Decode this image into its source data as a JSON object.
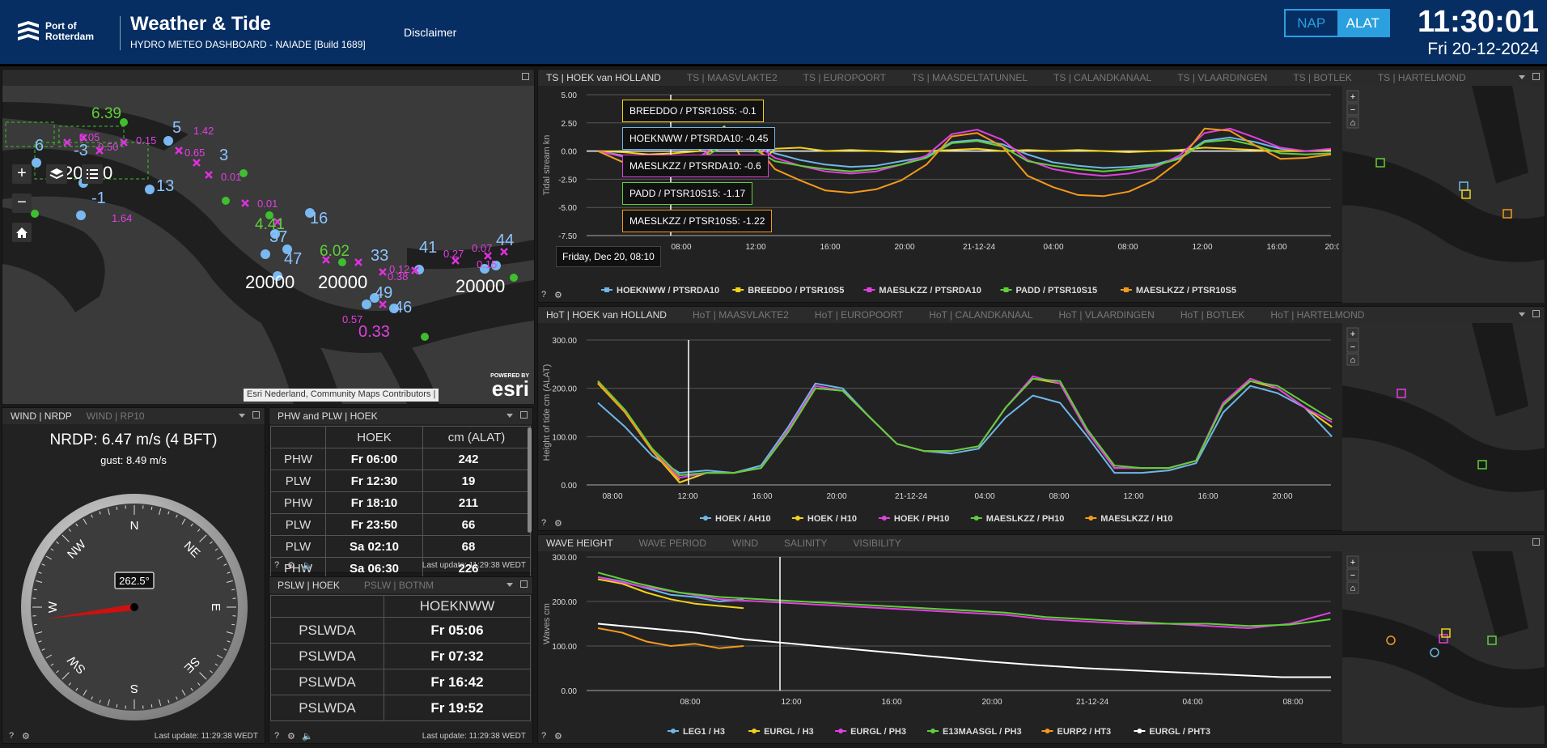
{
  "header": {
    "logo_line1": "Port of",
    "logo_line2": "Rotterdam",
    "title": "Weather & Tide",
    "subtitle": "HYDRO METEO DASHBOARD - NAIADE [Build 1689]",
    "disclaimer": "Disclaimer",
    "unit_nap": "NAP",
    "unit_alat": "ALAT",
    "time": "11:30:01",
    "date": "Fri 20-12-2024"
  },
  "map": {
    "attribution": "Esri Nederland, Community Maps Contributors |",
    "powered": "POWERED BY",
    "esri": "esri",
    "labels": [
      {
        "t": "20000",
        "c": "#fff"
      },
      {
        "t": "20000",
        "c": "#fff"
      },
      {
        "t": "20000",
        "c": "#fff"
      },
      {
        "t": "20000",
        "c": "#fff"
      },
      {
        "t": "5",
        "c": "#8cc4ff"
      },
      {
        "t": "3",
        "c": "#8cc4ff"
      },
      {
        "t": "6",
        "c": "#8cc4ff"
      },
      {
        "t": "-3",
        "c": "#8cc4ff"
      },
      {
        "t": "-1",
        "c": "#8cc4ff"
      },
      {
        "t": "13",
        "c": "#8cc4ff"
      },
      {
        "t": "16",
        "c": "#8cc4ff"
      },
      {
        "t": "37",
        "c": "#8cc4ff"
      },
      {
        "t": "47",
        "c": "#8cc4ff"
      },
      {
        "t": "33",
        "c": "#8cc4ff"
      },
      {
        "t": "41",
        "c": "#8cc4ff"
      },
      {
        "t": "44",
        "c": "#8cc4ff"
      },
      {
        "t": "49",
        "c": "#8cc4ff"
      },
      {
        "t": "46",
        "c": "#8cc4ff"
      },
      {
        "t": "4.41",
        "c": "#5fcf3a"
      },
      {
        "t": "6.02",
        "c": "#5fcf3a"
      },
      {
        "t": "6.39",
        "c": "#5fcf3a"
      },
      {
        "t": "1.42",
        "c": "#e040e0"
      },
      {
        "t": "0.65",
        "c": "#e040e0"
      },
      {
        "t": "0.01",
        "c": "#e040e0"
      },
      {
        "t": "0.01",
        "c": "#e040e0"
      },
      {
        "t": "0.15",
        "c": "#e040e0"
      },
      {
        "t": "0.05",
        "c": "#e040e0"
      },
      {
        "t": "0.50",
        "c": "#e040e0"
      },
      {
        "t": "1.64",
        "c": "#e040e0"
      },
      {
        "t": "0.12",
        "c": "#e040e0"
      },
      {
        "t": "0.57",
        "c": "#e040e0"
      },
      {
        "t": "0.33",
        "c": "#e040e0"
      },
      {
        "t": "0.38",
        "c": "#e040e0"
      },
      {
        "t": "0.27",
        "c": "#e040e0"
      },
      {
        "t": "0.07",
        "c": "#e040e0"
      },
      {
        "t": "0.15",
        "c": "#e040e0"
      }
    ]
  },
  "wind": {
    "tabs": [
      "WIND | NRDP",
      "WIND | RP10"
    ],
    "main": "NRDP: 6.47 m/s (4 BFT)",
    "gust": "gust: 8.49 m/s",
    "direction_deg": 262.5,
    "direction_label": "262.5°",
    "dirs": [
      "N",
      "NE",
      "E",
      "SE",
      "S",
      "SW",
      "W",
      "NW"
    ],
    "last_update": "Last update: 11:29:38 WEDT"
  },
  "phw": {
    "title": "PHW and PLW | HOEK",
    "col1": "HOEK",
    "col2": "cm (ALAT)",
    "rows": [
      [
        "PHW",
        "Fr 06:00",
        "242"
      ],
      [
        "PLW",
        "Fr 12:30",
        "19"
      ],
      [
        "PHW",
        "Fr 18:10",
        "211"
      ],
      [
        "PLW",
        "Fr 23:50",
        "66"
      ],
      [
        "PLW",
        "Sa 02:10",
        "68"
      ],
      [
        "PHW",
        "Sa 06:30",
        "226"
      ]
    ],
    "last_update": "Last update: 11:29:38 WEDT"
  },
  "pslw": {
    "tabs": [
      "PSLW | HOEK",
      "PSLW | BOTNM"
    ],
    "col1": "HOEKNWW",
    "rows": [
      [
        "PSLWDA",
        "Fr 05:06"
      ],
      [
        "PSLWDA",
        "Fr 07:32"
      ],
      [
        "PSLWDA",
        "Fr 16:42"
      ],
      [
        "PSLWDA",
        "Fr 19:52"
      ]
    ],
    "last_update": "Last update: 11:29:38 WEDT"
  },
  "ts": {
    "tabs": [
      "TS | HOEK van HOLLAND",
      "TS | MAASVLAKTE2",
      "TS | EUROPOORT",
      "TS | MAASDELTATUNNEL",
      "TS | CALANDKANAAL",
      "TS | VLAARDINGEN",
      "TS | BOTLEK",
      "TS | HARTELMOND"
    ],
    "tooltip_date": "Friday, Dec 20, 08:10",
    "tooltips": [
      {
        "t": "BREEDDO / PTSR10S5: -0.1",
        "c": "#f2d21b"
      },
      {
        "t": "HOEKNWW / PTSRDA10: -0.45",
        "c": "#6fb7e8"
      },
      {
        "t": "MAESLKZZ / PTSRDA10: -0.6",
        "c": "#e040e0"
      },
      {
        "t": "PADD / PTSR10S15: -1.17",
        "c": "#5fcf3a"
      },
      {
        "t": "MAESLKZZ / PTSR10S5: -1.22",
        "c": "#f39a1b"
      }
    ]
  },
  "hot": {
    "tabs": [
      "HoT | HOEK van HOLLAND",
      "HoT | MAASVLAKTE2",
      "HoT | EUROPOORT",
      "HoT | CALANDKANAAL",
      "HoT | VLAARDINGEN",
      "HoT | BOTLEK",
      "HoT | HARTELMOND"
    ]
  },
  "wave": {
    "tabs": [
      "WAVE HEIGHT",
      "WAVE PERIOD",
      "WIND",
      "SALINITY",
      "VISIBILITY"
    ]
  },
  "chart_data": [
    {
      "type": "line",
      "ylabel": "Tidal stream kn",
      "ylim": [
        -7.5,
        5
      ],
      "yticks": [
        "5.00",
        "2.50",
        "0.00",
        "-2.50",
        "-5.00",
        "-7.50"
      ],
      "xticks": [
        "08:00",
        "12:00",
        "16:00",
        "20:00",
        "21-12-24",
        "04:00",
        "08:00",
        "12:00",
        "16:00",
        "20:00"
      ],
      "series": [
        {
          "name": "HOEKNWW / PTSRDA10",
          "color": "#6fb7e8",
          "values": [
            0,
            -0.4,
            -0.6,
            -0.7,
            -0.5,
            0.8,
            0.9,
            -0.2,
            -0.8,
            -1.2,
            -1.4,
            -1.3,
            -0.9,
            -0.5,
            0.8,
            1.0,
            0.6,
            -0.3,
            -1.0,
            -1.3,
            -1.5,
            -1.4,
            -1.2,
            -0.6,
            0.9,
            1.2,
            0.8,
            0.2,
            0.0,
            0.1
          ]
        },
        {
          "name": "BREEDDO / PTSR10S5",
          "color": "#f2d21b",
          "values": [
            0,
            -0.1,
            -0.3,
            -0.2,
            0.0,
            2.2,
            -2.0,
            0.2,
            0.3,
            0.0,
            0.1,
            0.0,
            -0.1,
            0.0,
            0.1,
            0.2,
            0.0,
            0.1,
            0.0,
            0.1,
            0.0,
            -0.1,
            0.0,
            0.1,
            0.3,
            0.2,
            0.1,
            0.0,
            0.0,
            0.1
          ]
        },
        {
          "name": "MAESLKZZ / PTSRDA10",
          "color": "#e040e0",
          "values": [
            0,
            -0.5,
            -0.8,
            -0.9,
            -0.6,
            1.3,
            1.0,
            -0.6,
            -1.3,
            -1.8,
            -2.0,
            -1.8,
            -1.2,
            -0.4,
            1.5,
            1.9,
            1.0,
            -0.8,
            -1.6,
            -2.0,
            -2.2,
            -2.0,
            -1.5,
            -0.4,
            1.6,
            2.0,
            1.2,
            0.3,
            0.0,
            0.2
          ]
        },
        {
          "name": "PADD / PTSR10S15",
          "color": "#5fcf3a",
          "values": [
            0,
            -1.0,
            -1.3,
            -1.2,
            -0.8,
            0.5,
            0.4,
            -0.9,
            -1.3,
            -1.6,
            -1.8,
            -1.6,
            -1.2,
            -0.6,
            0.7,
            0.9,
            0.4,
            -0.9,
            -1.3,
            -1.6,
            -1.8,
            -1.6,
            -1.3,
            -0.7,
            0.8,
            1.0,
            0.5,
            -0.2,
            -0.3,
            -0.2
          ]
        },
        {
          "name": "MAESLKZZ / PTSR10S5",
          "color": "#f39a1b",
          "values": [
            0,
            -1.0,
            -1.4,
            -1.5,
            -1.2,
            1.7,
            1.2,
            -1.6,
            -2.6,
            -3.5,
            -3.7,
            -3.4,
            -2.6,
            -1.2,
            1.3,
            1.6,
            0.4,
            -2.2,
            -3.2,
            -3.9,
            -4.0,
            -3.6,
            -2.6,
            -0.9,
            2.0,
            1.8,
            0.5,
            -0.7,
            -0.6,
            -0.3
          ]
        }
      ]
    },
    {
      "type": "line",
      "ylabel": "Height of tide cm (ALAT)",
      "ylim": [
        0,
        300
      ],
      "yticks": [
        "300.00",
        "200.00",
        "100.00",
        "0.00"
      ],
      "xticks": [
        "08:00",
        "12:00",
        "16:00",
        "20:00",
        "21-12-24",
        "04:00",
        "08:00",
        "12:00",
        "16:00",
        "20:00"
      ],
      "series": [
        {
          "name": "HOEK / AH10",
          "color": "#6fb7e8",
          "values": [
            170,
            120,
            60,
            25,
            30,
            25,
            40,
            120,
            210,
            200,
            140,
            85,
            70,
            65,
            75,
            140,
            185,
            170,
            100,
            25,
            25,
            30,
            45,
            150,
            205,
            190,
            160,
            100
          ]
        },
        {
          "name": "HOEK / H10",
          "color": "#f2d21b",
          "values": [
            210,
            150,
            70,
            5,
            25,
            25,
            35,
            110,
            200,
            195,
            140,
            85,
            70,
            70,
            80,
            160,
            220,
            210,
            110,
            35,
            35,
            35,
            50,
            170,
            215,
            200,
            160,
            120
          ]
        },
        {
          "name": "HOEK / PH10",
          "color": "#e040e0",
          "values": [
            215,
            150,
            70,
            15,
            25,
            25,
            35,
            115,
            205,
            195,
            140,
            85,
            70,
            70,
            80,
            160,
            225,
            210,
            110,
            35,
            35,
            35,
            50,
            170,
            220,
            200,
            160,
            130
          ]
        },
        {
          "name": "MAESLKZZ / PH10",
          "color": "#5fcf3a",
          "values": [
            215,
            155,
            75,
            20,
            25,
            25,
            35,
            110,
            200,
            195,
            140,
            85,
            70,
            70,
            80,
            160,
            220,
            215,
            115,
            40,
            35,
            35,
            50,
            165,
            215,
            205,
            170,
            135
          ]
        },
        {
          "name": "MAESLKZZ / H10",
          "color": "#f39a1b",
          "values": [
            212,
            150,
            70,
            10
          ]
        }
      ]
    },
    {
      "type": "line",
      "ylabel": "Waves cm",
      "ylim": [
        0,
        300
      ],
      "yticks": [
        "300.00",
        "200.00",
        "100.00",
        "0.00"
      ],
      "xticks": [
        "08:00",
        "12:00",
        "16:00",
        "20:00",
        "21-12-24",
        "04:00",
        "08:00"
      ],
      "series": [
        {
          "name": "LEG1 / H3",
          "color": "#6fb7e8",
          "values": [
            255,
            245,
            230,
            215,
            210,
            200,
            205
          ]
        },
        {
          "name": "EURGL / H3",
          "color": "#f2d21b",
          "values": [
            250,
            240,
            220,
            205,
            195,
            190,
            185
          ]
        },
        {
          "name": "EURGL / PH3",
          "color": "#e040e0",
          "values": [
            255,
            235,
            220,
            205,
            200,
            195,
            190,
            185,
            180,
            175,
            170,
            160,
            155,
            150,
            150,
            145,
            140,
            150,
            175
          ]
        },
        {
          "name": "E13MAASGL / PH3",
          "color": "#5fcf3a",
          "values": [
            265,
            240,
            220,
            210,
            205,
            200,
            195,
            190,
            185,
            180,
            175,
            165,
            160,
            155,
            150,
            150,
            145,
            148,
            160
          ]
        },
        {
          "name": "EURP2 / HT3",
          "color": "#f39a1b",
          "values": [
            140,
            130,
            110,
            100,
            105,
            95,
            100
          ]
        },
        {
          "name": "EURGL / PHT3",
          "color": "#ffffff",
          "values": [
            150,
            140,
            130,
            115,
            105,
            95,
            85,
            75,
            65,
            57,
            50,
            45,
            40,
            35,
            30,
            30
          ]
        }
      ]
    }
  ]
}
